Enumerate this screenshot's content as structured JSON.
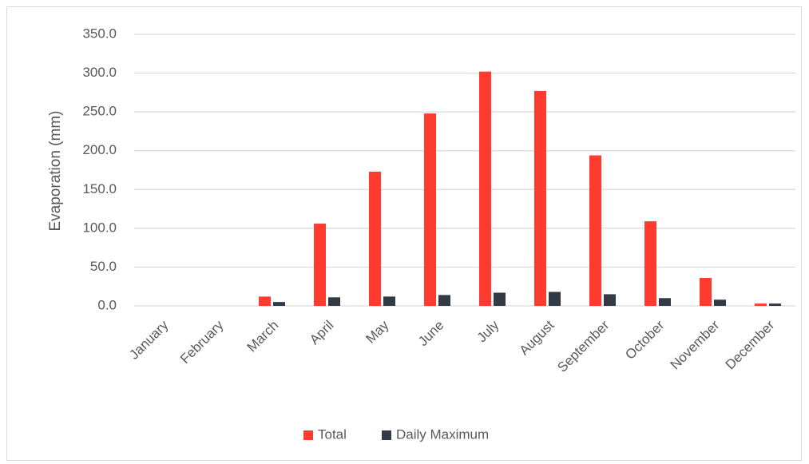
{
  "chart_data": {
    "type": "bar",
    "title": "",
    "xlabel": "",
    "ylabel": "Evaporation (mm)",
    "ylim": [
      0,
      350
    ],
    "ytick_step": 50,
    "ytick_labels": [
      "0.0",
      "50.0",
      "100.0",
      "150.0",
      "200.0",
      "250.0",
      "300.0",
      "350.0"
    ],
    "grid": true,
    "legend_position": "bottom",
    "categories": [
      "January",
      "February",
      "March",
      "April",
      "May",
      "June",
      "July",
      "August",
      "September",
      "October",
      "November",
      "December"
    ],
    "series": [
      {
        "name": "Total",
        "color": "#ff3b30",
        "values": [
          0,
          0,
          12,
          106,
          173,
          248,
          302,
          277,
          194,
          109,
          36,
          3
        ]
      },
      {
        "name": "Daily Maximum",
        "color": "#323a45",
        "values": [
          0,
          0,
          5,
          11,
          12,
          14,
          17,
          18,
          15,
          10,
          8,
          3
        ]
      }
    ]
  }
}
